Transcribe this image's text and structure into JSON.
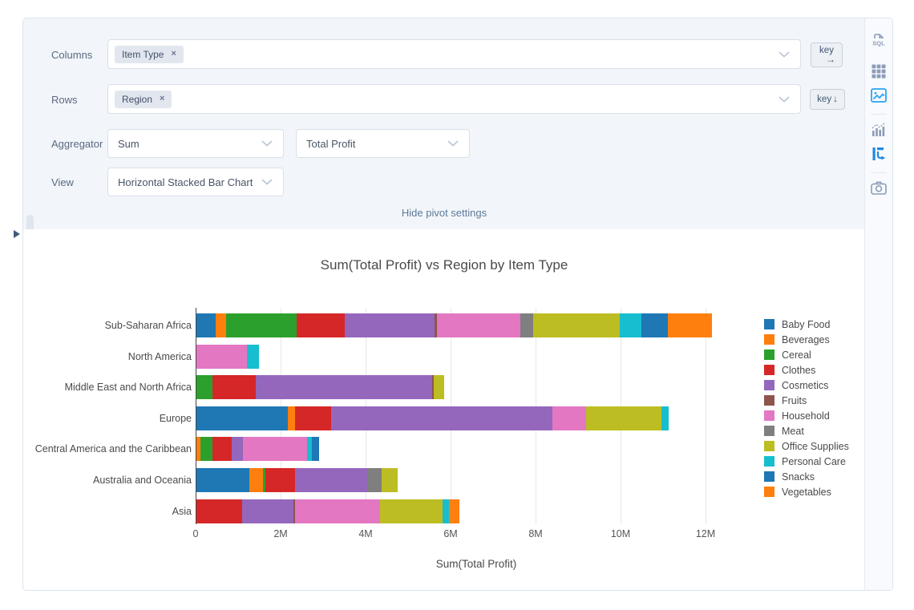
{
  "pivot_settings": {
    "columns": {
      "label": "Columns",
      "tags": [
        {
          "text": "Item Type",
          "remove": "×"
        }
      ]
    },
    "rows": {
      "label": "Rows",
      "tags": [
        {
          "text": "Region",
          "remove": "×"
        }
      ]
    },
    "aggregator": {
      "label": "Aggregator",
      "selected": "Sum",
      "value_selected": "Total Profit"
    },
    "view": {
      "label": "View",
      "selected": "Horizontal Stacked Bar Chart"
    },
    "key_buttons": {
      "columns_text": "key",
      "columns_arrow": "→",
      "rows_text": "key",
      "rows_arrow": "↓"
    },
    "hide_link": "Hide pivot settings"
  },
  "sidebar": {
    "icons": [
      {
        "name": "sql",
        "active": false
      },
      {
        "name": "table",
        "active": false
      },
      {
        "name": "chart-image",
        "active": true
      },
      {
        "name": "combo-chart",
        "active": false
      },
      {
        "name": "pivot",
        "active": true
      },
      {
        "name": "camera",
        "active": false
      }
    ]
  },
  "chart_data": {
    "type": "bar",
    "orientation": "horizontal",
    "stacked": true,
    "title": "Sum(Total Profit) vs Region by Item Type",
    "xlabel": "Sum(Total Profit)",
    "ylabel": "",
    "units": "values in millions",
    "xlim_m": [
      0,
      13.2
    ],
    "x_ticks": [
      "0",
      "2M",
      "4M",
      "6M",
      "8M",
      "10M",
      "12M"
    ],
    "x_tick_values_m": [
      0,
      2,
      4,
      6,
      8,
      10,
      12
    ],
    "grid": true,
    "legend_position": "right",
    "categories": [
      "Sub-Saharan Africa",
      "North America",
      "Middle East and North Africa",
      "Europe",
      "Central America and the Caribbean",
      "Australia and Oceania",
      "Asia"
    ],
    "series": [
      {
        "name": "Baby Food",
        "color": "#1f77b4",
        "values": [
          0.45,
          0,
          0,
          2.15,
          0,
          1.25,
          0
        ]
      },
      {
        "name": "Beverages",
        "color": "#ff7f0e",
        "values": [
          0.25,
          0,
          0,
          0.17,
          0.1,
          0.31,
          0
        ]
      },
      {
        "name": "Cereal",
        "color": "#2ca02c",
        "values": [
          1.65,
          0,
          0.38,
          0,
          0.28,
          0.07,
          0
        ]
      },
      {
        "name": "Clothes",
        "color": "#d62728",
        "values": [
          1.15,
          0,
          1.02,
          0.85,
          0.45,
          0.69,
          1.07
        ]
      },
      {
        "name": "Cosmetics",
        "color": "#9467bd",
        "values": [
          2.1,
          0,
          4.15,
          5.2,
          0.27,
          1.7,
          1.22
        ]
      },
      {
        "name": "Fruits",
        "color": "#8c564b",
        "values": [
          0.07,
          0,
          0.04,
          0,
          0,
          0,
          0.03
        ]
      },
      {
        "name": "Household",
        "color": "#e377c2",
        "values": [
          1.95,
          1.18,
          0,
          0.8,
          1.5,
          0,
          2.0
        ]
      },
      {
        "name": "Meat",
        "color": "#7f7f7f",
        "values": [
          0.3,
          0,
          0,
          0,
          0,
          0.33,
          0
        ]
      },
      {
        "name": "Office Supplies",
        "color": "#bcbd22",
        "values": [
          2.05,
          0,
          0.24,
          1.78,
          0,
          0.38,
          1.48
        ]
      },
      {
        "name": "Personal Care",
        "color": "#17becf",
        "values": [
          0.5,
          0.3,
          0,
          0.17,
          0.12,
          0,
          0.14
        ]
      },
      {
        "name": "Snacks",
        "color": "#1f77b4",
        "values": [
          0.62,
          0,
          0,
          0,
          0.16,
          0,
          0
        ]
      },
      {
        "name": "Vegetables",
        "color": "#ff7f0e",
        "values": [
          1.05,
          0,
          0,
          0,
          0,
          0,
          0.24
        ]
      }
    ]
  }
}
